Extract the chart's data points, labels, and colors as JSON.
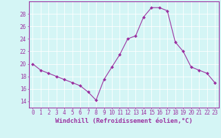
{
  "hours": [
    0,
    1,
    2,
    3,
    4,
    5,
    6,
    7,
    8,
    9,
    10,
    11,
    12,
    13,
    14,
    15,
    16,
    17,
    18,
    19,
    20,
    21,
    22,
    23
  ],
  "windchill": [
    20,
    19,
    18.5,
    18,
    17.5,
    17,
    16.5,
    15.5,
    14.2,
    17.5,
    19.5,
    21.5,
    24,
    24.5,
    27.5,
    29,
    29,
    28.5,
    23.5,
    22,
    19.5,
    19,
    18.5,
    17
  ],
  "line_color": "#9b30a0",
  "marker": "D",
  "marker_size": 2,
  "background_color": "#d4f5f5",
  "grid_color": "#ffffff",
  "xlabel": "Windchill (Refroidissement éolien,°C)",
  "ylim": [
    13,
    30
  ],
  "yticks": [
    14,
    16,
    18,
    20,
    22,
    24,
    26,
    28
  ],
  "xlim": [
    -0.5,
    23.5
  ],
  "tick_color": "#9b30a0",
  "label_fontsize": 5.5,
  "xlabel_fontsize": 6.5,
  "spine_color": "#9b30a0"
}
